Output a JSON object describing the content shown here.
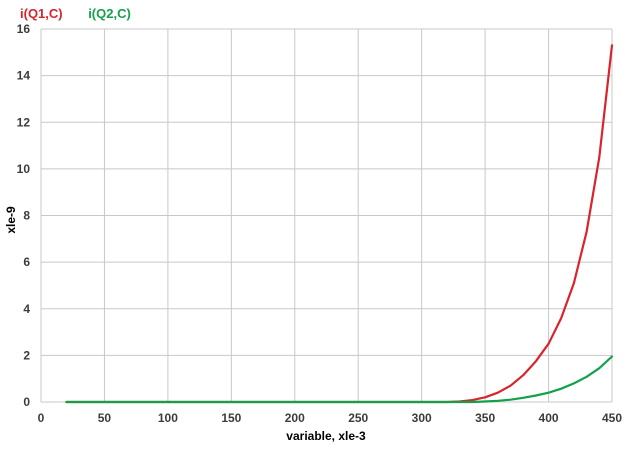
{
  "chart_data": {
    "type": "line",
    "title": "",
    "xlabel": "variable, xle-3",
    "ylabel": "xle-9",
    "xlim": [
      0,
      450
    ],
    "ylim": [
      0,
      16
    ],
    "x_ticks": [
      "0",
      "50",
      "100",
      "150",
      "200",
      "250",
      "300",
      "350",
      "400",
      "450"
    ],
    "y_ticks": [
      "0",
      "2",
      "4",
      "6",
      "8",
      "10",
      "12",
      "14",
      "16"
    ],
    "grid": true,
    "legend_position": "top-left",
    "series": [
      {
        "name": "i(Q1,C)",
        "color": "#d9232d",
        "x": [
          20,
          50,
          100,
          150,
          200,
          250,
          300,
          320,
          330,
          340,
          350,
          360,
          370,
          380,
          390,
          400,
          410,
          420,
          430,
          440,
          450
        ],
        "y": [
          0,
          0,
          0,
          0,
          0,
          0,
          0,
          0,
          0.02,
          0.08,
          0.2,
          0.4,
          0.7,
          1.15,
          1.75,
          2.5,
          3.6,
          5.1,
          7.3,
          10.5,
          15.3
        ]
      },
      {
        "name": "i(Q2,C)",
        "color": "#12a14a",
        "x": [
          20,
          50,
          100,
          150,
          200,
          250,
          300,
          320,
          340,
          350,
          360,
          370,
          380,
          390,
          400,
          410,
          420,
          430,
          440,
          450
        ],
        "y": [
          0,
          0,
          0,
          0,
          0,
          0,
          0,
          0,
          0,
          0.02,
          0.05,
          0.1,
          0.18,
          0.28,
          0.4,
          0.57,
          0.8,
          1.08,
          1.45,
          1.95
        ]
      }
    ]
  }
}
